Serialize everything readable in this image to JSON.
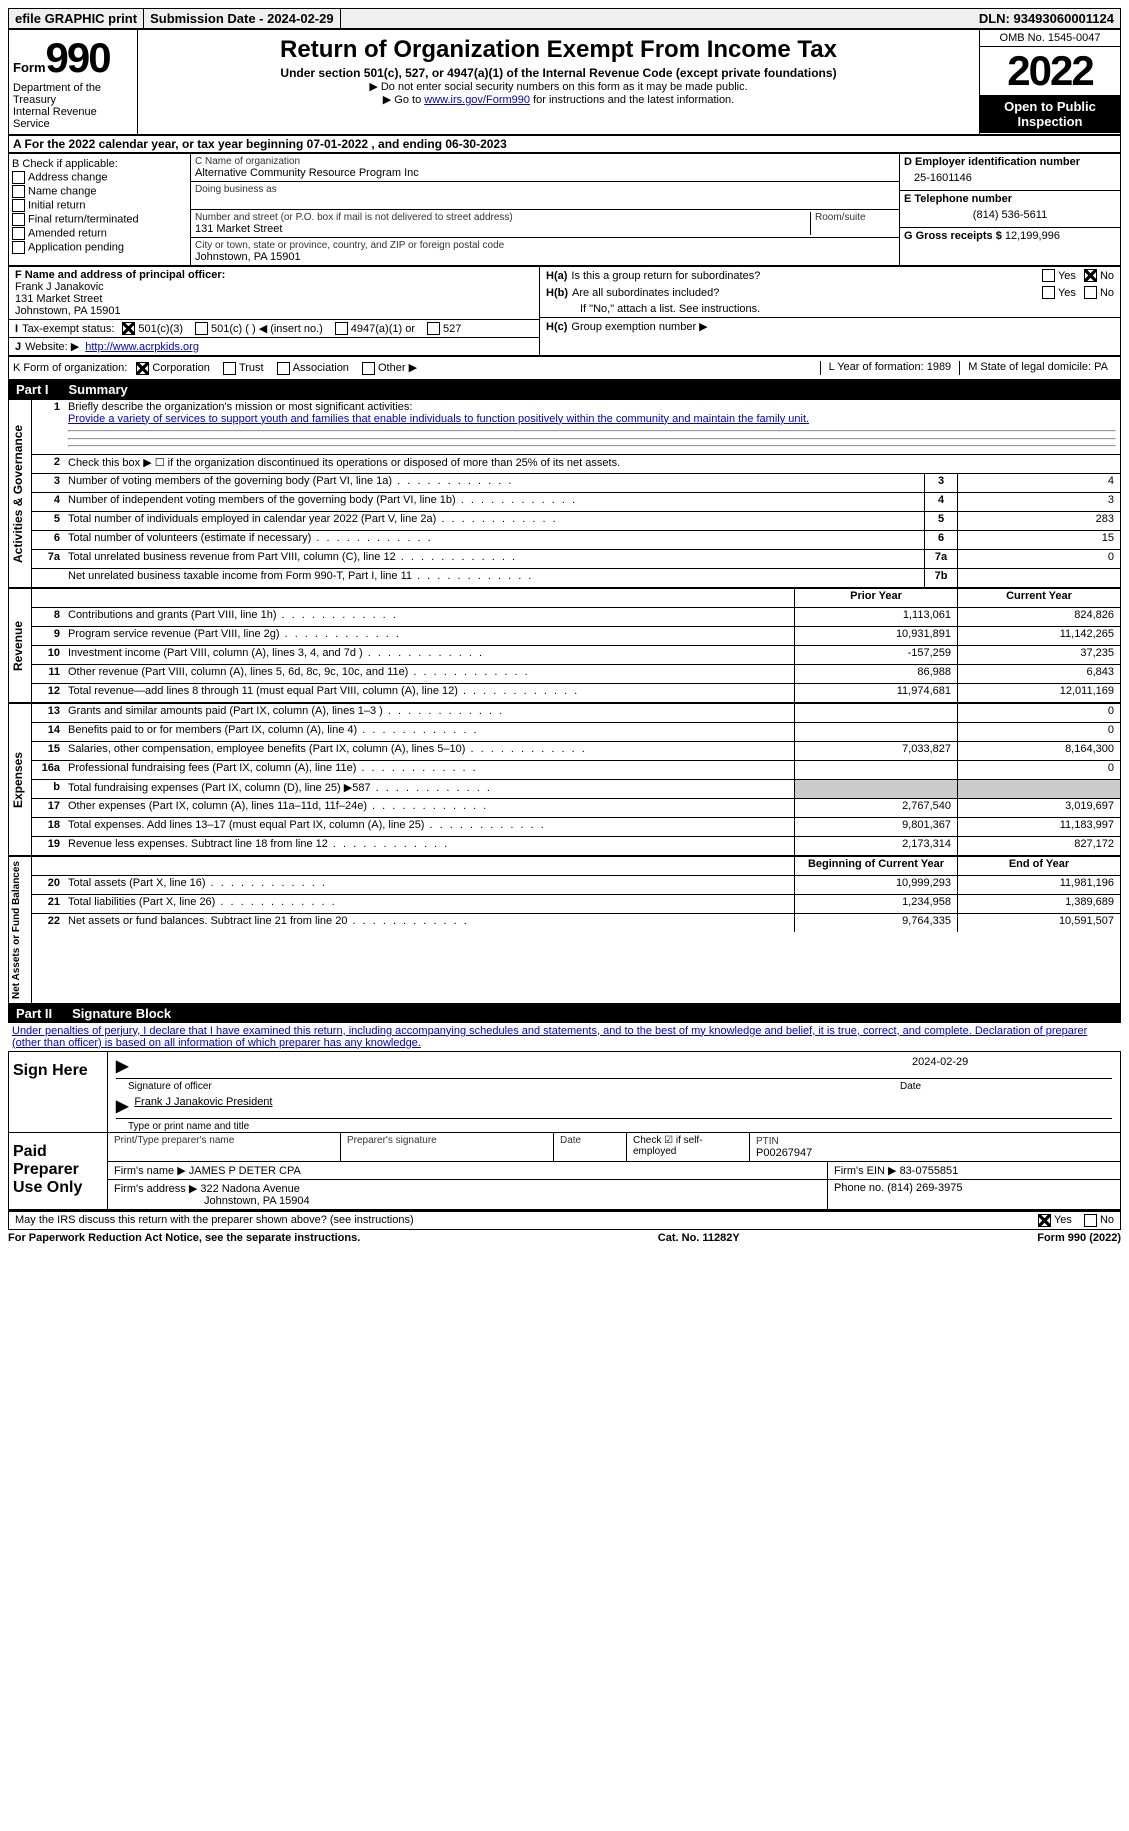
{
  "top": {
    "efile": "efile GRAPHIC print",
    "submission": "Submission Date - 2024-02-29",
    "dln": "DLN: 93493060001124"
  },
  "header": {
    "form_word": "Form",
    "form_num": "990",
    "dept": "Department of the Treasury",
    "irs": "Internal Revenue Service",
    "title": "Return of Organization Exempt From Income Tax",
    "sub": "Under section 501(c), 527, or 4947(a)(1) of the Internal Revenue Code (except private foundations)",
    "note1": "▶ Do not enter social security numbers on this form as it may be made public.",
    "note2_pre": "▶ Go to ",
    "note2_link": "www.irs.gov/Form990",
    "note2_post": " for instructions and the latest information.",
    "omb": "OMB No. 1545-0047",
    "year": "2022",
    "open": "Open to Public Inspection"
  },
  "A": {
    "text": "A For the 2022 calendar year, or tax year beginning 07-01-2022    , and ending 06-30-2023"
  },
  "B": {
    "label": "B Check if applicable:",
    "items": [
      "Address change",
      "Name change",
      "Initial return",
      "Final return/terminated",
      "Amended return",
      "Application pending"
    ]
  },
  "C": {
    "name_label": "C Name of organization",
    "name": "Alternative Community Resource Program Inc",
    "dba_label": "Doing business as",
    "addr_label": "Number and street (or P.O. box if mail is not delivered to street address)",
    "room_label": "Room/suite",
    "addr": "131 Market Street",
    "city_label": "City or town, state or province, country, and ZIP or foreign postal code",
    "city": "Johnstown, PA  15901"
  },
  "D": {
    "label": "D Employer identification number",
    "val": "25-1601146"
  },
  "E": {
    "label": "E Telephone number",
    "val": "(814) 536-5611"
  },
  "G": {
    "label": "G Gross receipts $",
    "val": "12,199,996"
  },
  "F": {
    "label": "F  Name and address of principal officer:",
    "name": "Frank J Janakovic",
    "addr": "131 Market Street",
    "city": "Johnstown, PA  15901"
  },
  "H": {
    "a": "Is this a group return for subordinates?",
    "b": "Are all subordinates included?",
    "b_note": "If \"No,\" attach a list. See instructions.",
    "c": "Group exemption number ▶",
    "yes": "Yes",
    "no": "No"
  },
  "I": {
    "label": "Tax-exempt status:",
    "opts": [
      "501(c)(3)",
      "501(c) (  ) ◀ (insert no.)",
      "4947(a)(1) or",
      "527"
    ]
  },
  "J": {
    "label": "Website: ▶",
    "val": "http://www.acrpkids.org"
  },
  "K": {
    "label": "K Form of organization:",
    "opts": [
      "Corporation",
      "Trust",
      "Association",
      "Other ▶"
    ]
  },
  "L": {
    "label": "L Year of formation:",
    "val": "1989"
  },
  "M": {
    "label": "M State of legal domicile:",
    "val": "PA"
  },
  "part1": {
    "label": "Part I",
    "title": "Summary"
  },
  "summary": {
    "l1": "Briefly describe the organization's mission or most significant activities:",
    "l1_text": "Provide a variety of services to support youth and families that enable individuals to function positively within the community and maintain the family unit.",
    "l2": "Check this box ▶ ☐  if the organization discontinued its operations or disposed of more than 25% of its net assets.",
    "rows_gov": [
      {
        "n": "3",
        "d": "Number of voting members of the governing body (Part VI, line 1a)",
        "b": "3",
        "v": "4"
      },
      {
        "n": "4",
        "d": "Number of independent voting members of the governing body (Part VI, line 1b)",
        "b": "4",
        "v": "3"
      },
      {
        "n": "5",
        "d": "Total number of individuals employed in calendar year 2022 (Part V, line 2a)",
        "b": "5",
        "v": "283"
      },
      {
        "n": "6",
        "d": "Total number of volunteers (estimate if necessary)",
        "b": "6",
        "v": "15"
      },
      {
        "n": "7a",
        "d": "Total unrelated business revenue from Part VIII, column (C), line 12",
        "b": "7a",
        "v": "0"
      },
      {
        "n": "",
        "d": "Net unrelated business taxable income from Form 990-T, Part I, line 11",
        "b": "7b",
        "v": ""
      }
    ],
    "hdr_prior": "Prior Year",
    "hdr_curr": "Current Year",
    "rows_rev": [
      {
        "n": "8",
        "d": "Contributions and grants (Part VIII, line 1h)",
        "p": "1,113,061",
        "c": "824,826"
      },
      {
        "n": "9",
        "d": "Program service revenue (Part VIII, line 2g)",
        "p": "10,931,891",
        "c": "11,142,265"
      },
      {
        "n": "10",
        "d": "Investment income (Part VIII, column (A), lines 3, 4, and 7d )",
        "p": "-157,259",
        "c": "37,235"
      },
      {
        "n": "11",
        "d": "Other revenue (Part VIII, column (A), lines 5, 6d, 8c, 9c, 10c, and 11e)",
        "p": "86,988",
        "c": "6,843"
      },
      {
        "n": "12",
        "d": "Total revenue—add lines 8 through 11 (must equal Part VIII, column (A), line 12)",
        "p": "11,974,681",
        "c": "12,011,169"
      }
    ],
    "rows_exp": [
      {
        "n": "13",
        "d": "Grants and similar amounts paid (Part IX, column (A), lines 1–3 )",
        "p": "",
        "c": "0"
      },
      {
        "n": "14",
        "d": "Benefits paid to or for members (Part IX, column (A), line 4)",
        "p": "",
        "c": "0"
      },
      {
        "n": "15",
        "d": "Salaries, other compensation, employee benefits (Part IX, column (A), lines 5–10)",
        "p": "7,033,827",
        "c": "8,164,300"
      },
      {
        "n": "16a",
        "d": "Professional fundraising fees (Part IX, column (A), line 11e)",
        "p": "",
        "c": "0"
      },
      {
        "n": "b",
        "d": "Total fundraising expenses (Part IX, column (D), line 25) ▶587",
        "p": "shade",
        "c": "shade"
      },
      {
        "n": "17",
        "d": "Other expenses (Part IX, column (A), lines 11a–11d, 11f–24e)",
        "p": "2,767,540",
        "c": "3,019,697"
      },
      {
        "n": "18",
        "d": "Total expenses. Add lines 13–17 (must equal Part IX, column (A), line 25)",
        "p": "9,801,367",
        "c": "11,183,997"
      },
      {
        "n": "19",
        "d": "Revenue less expenses. Subtract line 18 from line 12",
        "p": "2,173,314",
        "c": "827,172"
      }
    ],
    "hdr_beg": "Beginning of Current Year",
    "hdr_end": "End of Year",
    "rows_net": [
      {
        "n": "20",
        "d": "Total assets (Part X, line 16)",
        "p": "10,999,293",
        "c": "11,981,196"
      },
      {
        "n": "21",
        "d": "Total liabilities (Part X, line 26)",
        "p": "1,234,958",
        "c": "1,389,689"
      },
      {
        "n": "22",
        "d": "Net assets or fund balances. Subtract line 21 from line 20",
        "p": "9,764,335",
        "c": "10,591,507"
      }
    ],
    "side_gov": "Activities & Governance",
    "side_rev": "Revenue",
    "side_exp": "Expenses",
    "side_net": "Net Assets or Fund Balances"
  },
  "part2": {
    "label": "Part II",
    "title": "Signature Block"
  },
  "sig": {
    "perjury": "Under penalties of perjury, I declare that I have examined this return, including accompanying schedules and statements, and to the best of my knowledge and belief, it is true, correct, and complete. Declaration of preparer (other than officer) is based on all information of which preparer has any knowledge.",
    "sign_here": "Sign Here",
    "sig_officer": "Signature of officer",
    "sig_date": "2024-02-29",
    "date": "Date",
    "name": "Frank J Janakovic  President",
    "name_label": "Type or print name and title",
    "paid": "Paid Preparer Use Only",
    "print_label": "Print/Type preparer's name",
    "prep_sig": "Preparer's signature",
    "check_self": "Check ☑ if self-employed",
    "ptin_label": "PTIN",
    "ptin": "P00267947",
    "firm_name_label": "Firm's name    ▶",
    "firm_name": "JAMES P DETER CPA",
    "firm_ein_label": "Firm's EIN ▶",
    "firm_ein": "83-0755851",
    "firm_addr_label": "Firm's address ▶",
    "firm_addr": "322 Nadona Avenue",
    "firm_city": "Johnstown, PA  15904",
    "phone_label": "Phone no.",
    "phone": "(814) 269-3975",
    "discuss": "May the IRS discuss this return with the preparer shown above? (see instructions)",
    "yes": "Yes",
    "no": "No"
  },
  "footer": {
    "left": "For Paperwork Reduction Act Notice, see the separate instructions.",
    "mid": "Cat. No. 11282Y",
    "right": "Form 990 (2022)"
  }
}
